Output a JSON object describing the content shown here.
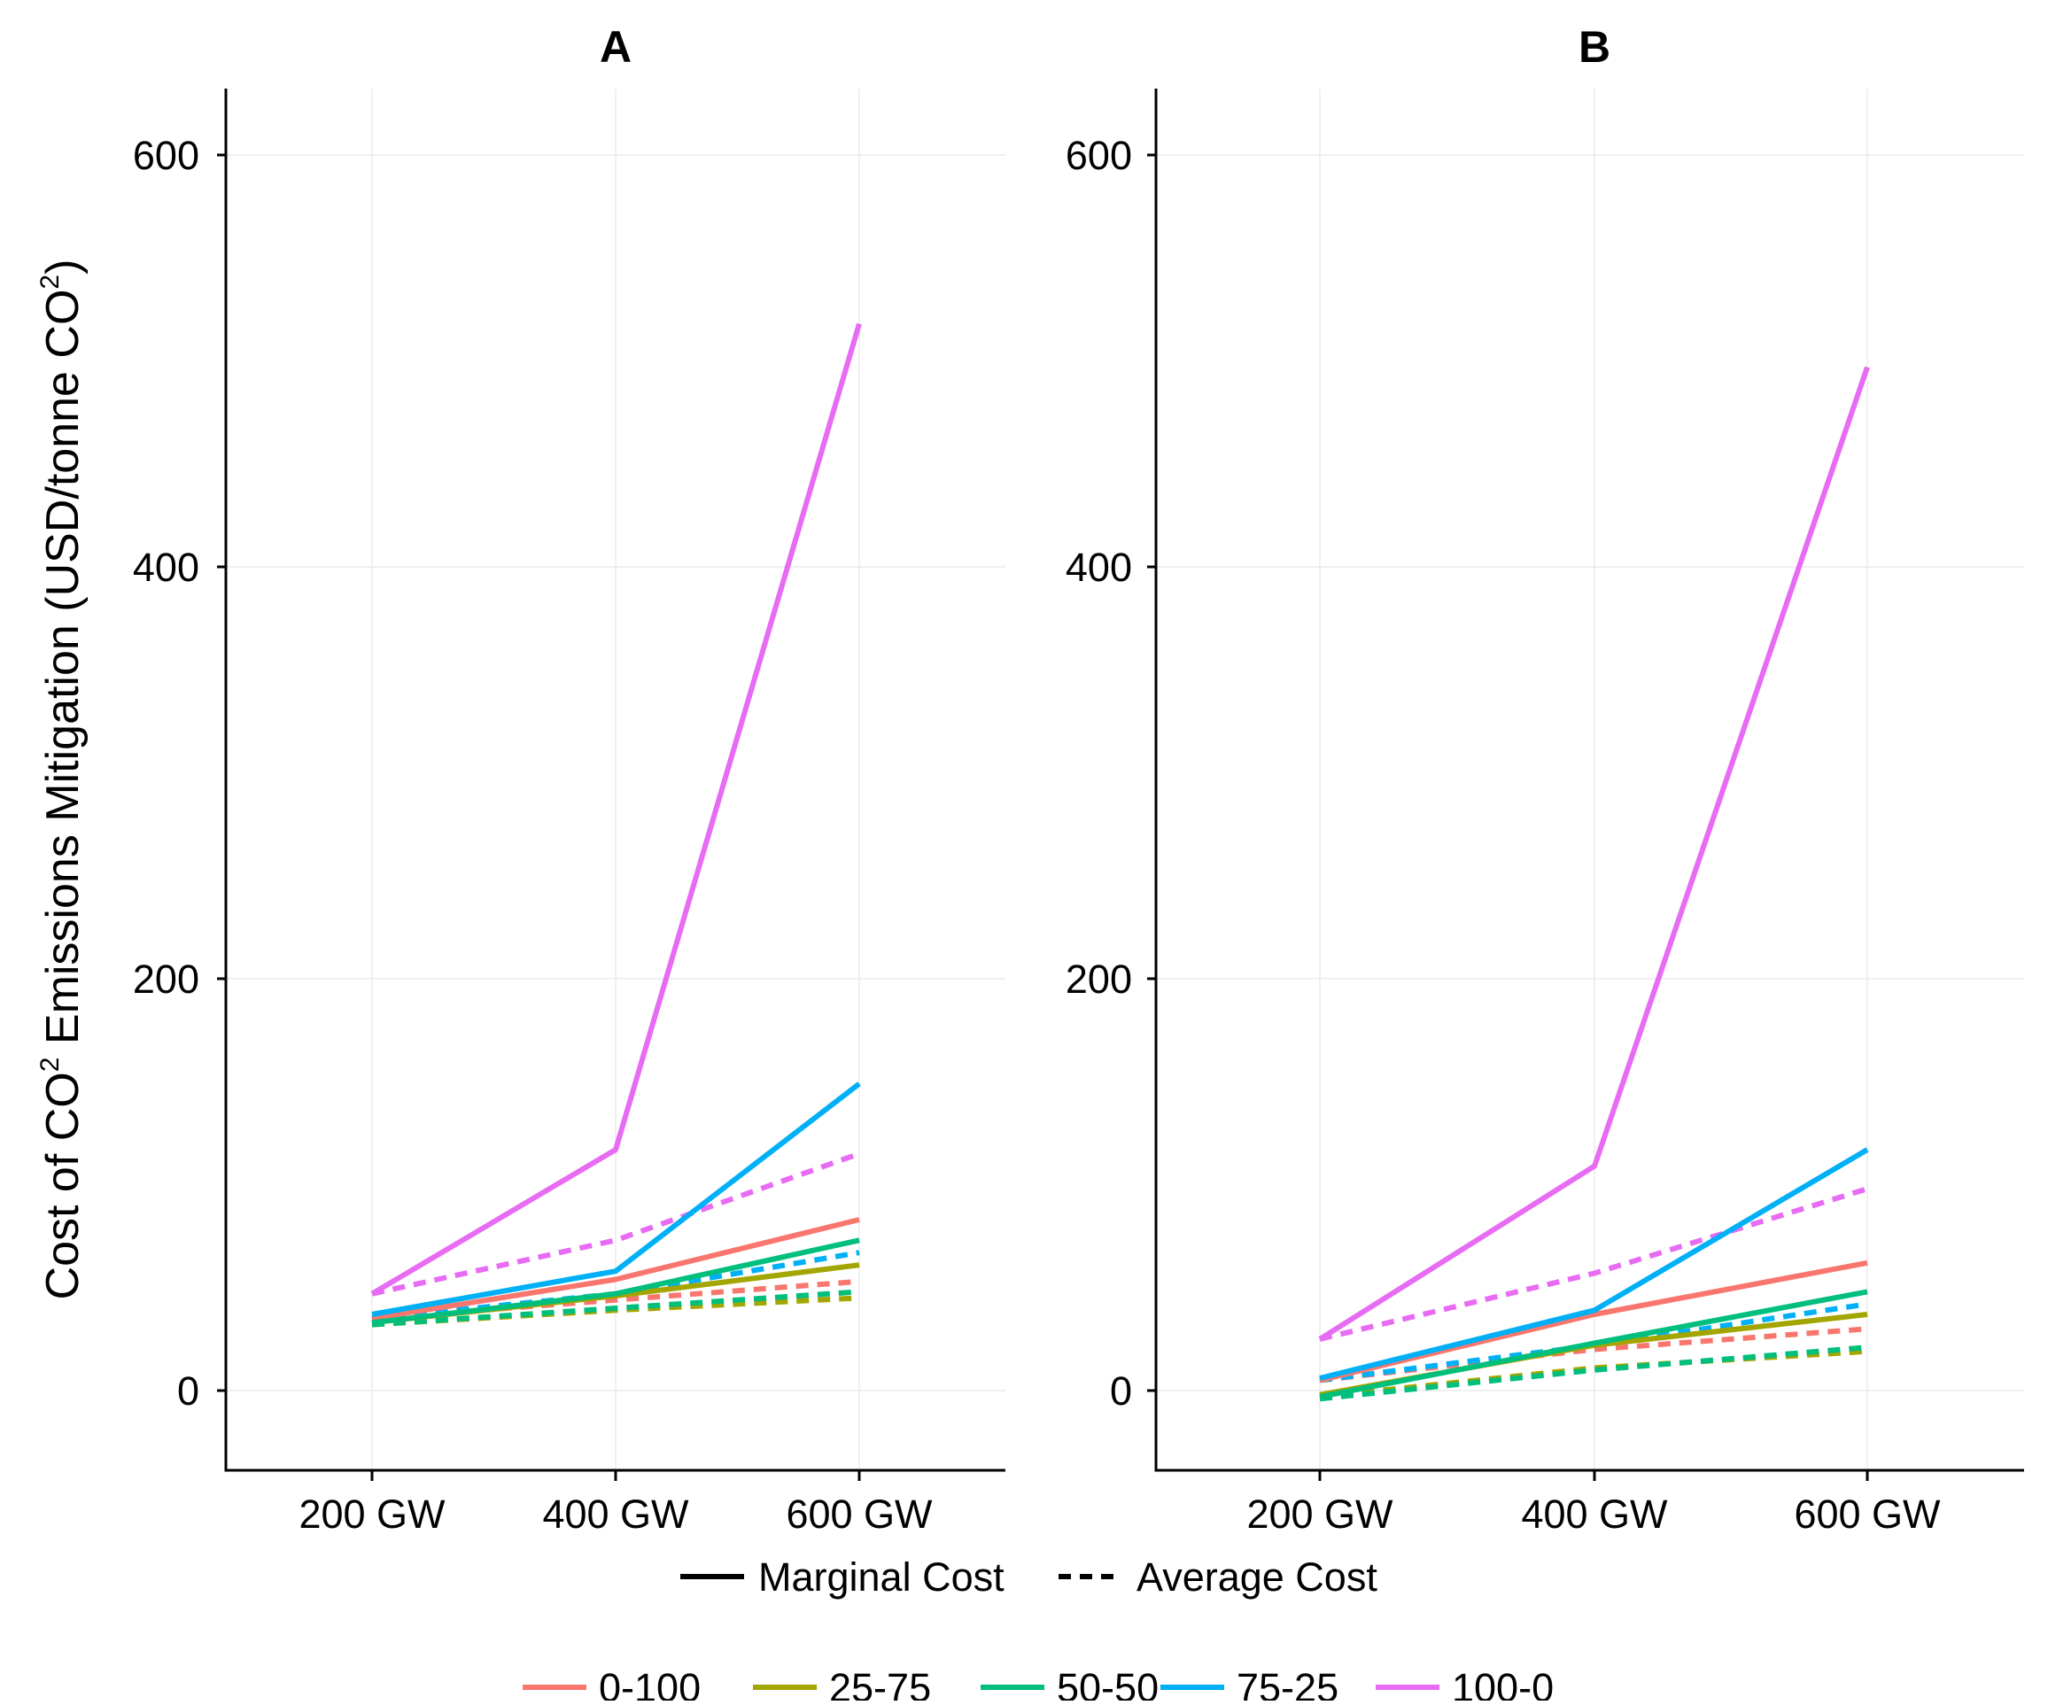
{
  "colors": {
    "0-100": "#F8766D",
    "25-75": "#A3A500",
    "50-50": "#00BF7D",
    "75-25": "#00B0F6",
    "100-0": "#E76BF3"
  },
  "ylabel": {
    "prefix": "Cost of CO",
    "sup1": "2",
    "middle": " Emissions Mitigation ",
    "paren_open": "(",
    "unit": "USD/tonne CO",
    "sup2": "2",
    "paren_close": ")"
  },
  "linetype_legend": [
    {
      "label": "Marginal Cost",
      "dash": "solid"
    },
    {
      "label": "Average Cost",
      "dash": "dashed"
    }
  ],
  "color_legend": [
    "0-100",
    "25-75",
    "50-50",
    "75-25",
    "100-0"
  ],
  "chart_data": [
    {
      "type": "line",
      "title": "A",
      "categories": [
        "200 GW",
        "400 GW",
        "600 GW"
      ],
      "yticks": [
        0,
        200,
        400,
        600
      ],
      "ylim": [
        -40,
        630
      ],
      "series": [
        {
          "name": "0-100",
          "cost": "Marginal Cost",
          "values": [
            35,
            54,
            83
          ]
        },
        {
          "name": "25-75",
          "cost": "Marginal Cost",
          "values": [
            33,
            46,
            61
          ]
        },
        {
          "name": "50-50",
          "cost": "Marginal Cost",
          "values": [
            33,
            47,
            73
          ]
        },
        {
          "name": "75-25",
          "cost": "Marginal Cost",
          "values": [
            37,
            58,
            149
          ]
        },
        {
          "name": "100-0",
          "cost": "Marginal Cost",
          "values": [
            47,
            117,
            518
          ]
        },
        {
          "name": "0-100",
          "cost": "Average Cost",
          "values": [
            35,
            44,
            53
          ]
        },
        {
          "name": "25-75",
          "cost": "Average Cost",
          "values": [
            32,
            39,
            45
          ]
        },
        {
          "name": "50-50",
          "cost": "Average Cost",
          "values": [
            32,
            40,
            48
          ]
        },
        {
          "name": "75-25",
          "cost": "Average Cost",
          "values": [
            35,
            47,
            67
          ]
        },
        {
          "name": "100-0",
          "cost": "Average Cost",
          "values": [
            47,
            73,
            115
          ]
        }
      ]
    },
    {
      "type": "line",
      "title": "B",
      "categories": [
        "200 GW",
        "400 GW",
        "600 GW"
      ],
      "yticks": [
        0,
        200,
        400,
        600
      ],
      "ylim": [
        -40,
        630
      ],
      "series": [
        {
          "name": "0-100",
          "cost": "Marginal Cost",
          "values": [
            5,
            37,
            62
          ]
        },
        {
          "name": "25-75",
          "cost": "Marginal Cost",
          "values": [
            -2,
            22,
            37
          ]
        },
        {
          "name": "50-50",
          "cost": "Marginal Cost",
          "values": [
            -3,
            23,
            48
          ]
        },
        {
          "name": "75-25",
          "cost": "Marginal Cost",
          "values": [
            6,
            39,
            117
          ]
        },
        {
          "name": "100-0",
          "cost": "Marginal Cost",
          "values": [
            25,
            109,
            497
          ]
        },
        {
          "name": "0-100",
          "cost": "Average Cost",
          "values": [
            5,
            20,
            30
          ]
        },
        {
          "name": "25-75",
          "cost": "Average Cost",
          "values": [
            -3,
            11,
            19
          ]
        },
        {
          "name": "50-50",
          "cost": "Average Cost",
          "values": [
            -4,
            10,
            21
          ]
        },
        {
          "name": "75-25",
          "cost": "Average Cost",
          "values": [
            5,
            22,
            42
          ]
        },
        {
          "name": "100-0",
          "cost": "Average Cost",
          "values": [
            25,
            57,
            98
          ]
        }
      ]
    }
  ]
}
